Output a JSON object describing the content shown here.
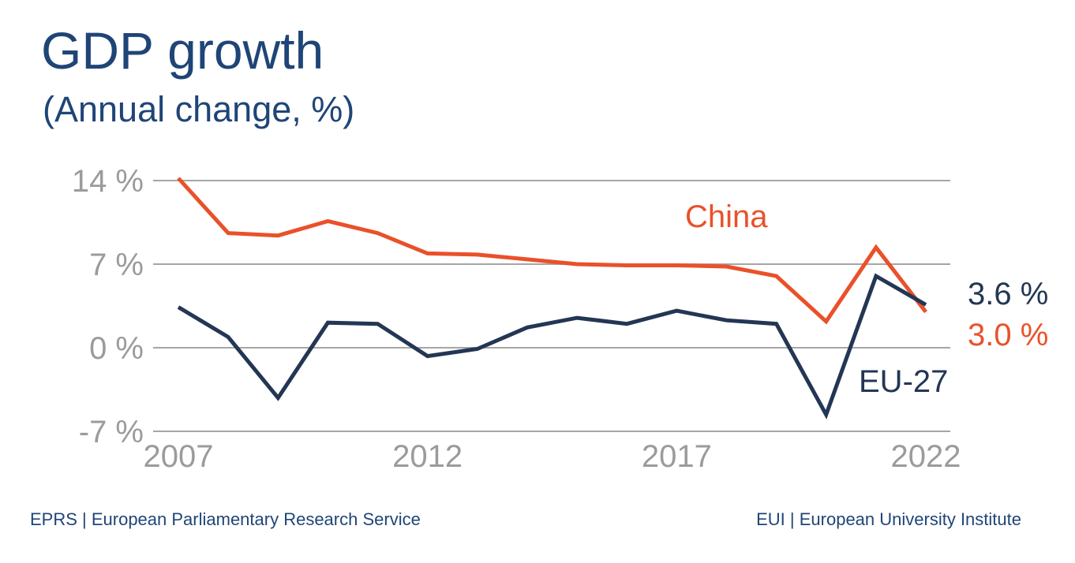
{
  "colors": {
    "title": "#1f4577",
    "grid": "#a6a6a6",
    "axis_text": "#9b9b9b",
    "china": "#e9512a",
    "eu": "#233654",
    "footer": "#1f4577"
  },
  "footer": {
    "left": "EPRS | European Parliamentary Research Service",
    "right": "EUI | European University Institute"
  },
  "chart_data": {
    "type": "line",
    "title": "GDP growth",
    "subtitle": "(Annual change, %)",
    "xlabel": "",
    "ylabel": "",
    "x": [
      2007,
      2008,
      2009,
      2010,
      2011,
      2012,
      2013,
      2014,
      2015,
      2016,
      2017,
      2018,
      2019,
      2020,
      2021,
      2022
    ],
    "xticks": [
      2007,
      2012,
      2017,
      2022
    ],
    "xtick_labels": [
      "2007",
      "2012",
      "2017",
      "2022"
    ],
    "yticks": [
      14,
      7,
      0,
      -7
    ],
    "ytick_labels": [
      "14 %",
      "7 %",
      "0 %",
      "-7 %"
    ],
    "ylim": [
      -7,
      14
    ],
    "xlim": [
      2007,
      2022
    ],
    "grid": true,
    "legend": "direct labels",
    "series": [
      {
        "name": "China",
        "label": "China",
        "end_label": "3.0 %",
        "color": "#e9512a",
        "values": [
          14.2,
          9.6,
          9.4,
          10.6,
          9.6,
          7.9,
          7.8,
          7.4,
          7.0,
          6.9,
          6.9,
          6.8,
          6.0,
          2.2,
          8.4,
          3.0
        ]
      },
      {
        "name": "EU-27",
        "label": "EU-27",
        "end_label": "3.6 %",
        "color": "#233654",
        "values": [
          3.4,
          0.9,
          -4.2,
          2.1,
          2.0,
          -0.7,
          -0.1,
          1.7,
          2.5,
          2.0,
          3.1,
          2.3,
          2.0,
          -5.6,
          6.0,
          3.6
        ]
      }
    ]
  }
}
